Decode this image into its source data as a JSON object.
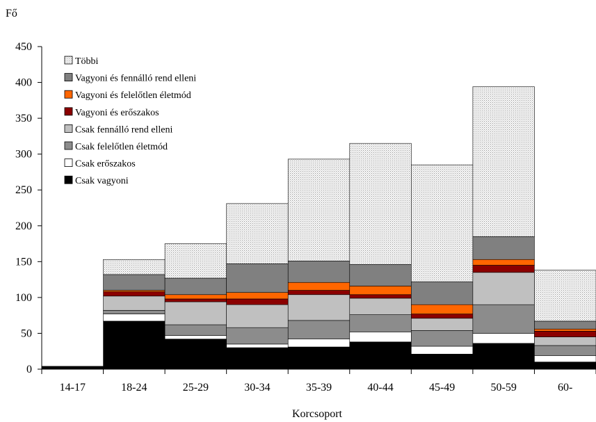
{
  "chart_data": {
    "type": "bar",
    "stacked": true,
    "ylabel": "Fő",
    "xlabel": "Korcsoport",
    "ylim": [
      0,
      450
    ],
    "yticks": [
      0,
      50,
      100,
      150,
      200,
      250,
      300,
      350,
      400,
      450
    ],
    "grid": false,
    "legend_position": "top-left",
    "categories": [
      "14-17",
      "18-24",
      "25-29",
      "30-34",
      "35-39",
      "40-44",
      "45-49",
      "50-59",
      "60-"
    ],
    "series": [
      {
        "name": "Csak vagyoni",
        "color": "#000000",
        "pattern": "solid",
        "values": [
          4,
          67,
          42,
          30,
          31,
          38,
          21,
          36,
          10
        ]
      },
      {
        "name": "Csak erőszakos",
        "color": "#ffffff",
        "pattern": "solid",
        "values": [
          0,
          10,
          5,
          5,
          11,
          14,
          11,
          14,
          9
        ]
      },
      {
        "name": "Csak felelőtlen életmód",
        "color": "#8c8c8c",
        "pattern": "solid",
        "values": [
          0,
          5,
          15,
          23,
          26,
          24,
          22,
          40,
          14
        ]
      },
      {
        "name": "Csak fennálló rend elleni",
        "color": "#c0c0c0",
        "pattern": "solid",
        "values": [
          0,
          20,
          32,
          32,
          36,
          23,
          17,
          45,
          12
        ]
      },
      {
        "name": "Vagyoni és erőszakos",
        "color": "#8b0000",
        "pattern": "solid",
        "values": [
          0,
          6,
          4,
          8,
          6,
          5,
          6,
          10,
          8
        ]
      },
      {
        "name": "Vagyoni és felelőtlen életmód",
        "color": "#ff6600",
        "pattern": "solid",
        "values": [
          0,
          2,
          6,
          9,
          11,
          12,
          13,
          8,
          3
        ]
      },
      {
        "name": "Vagyoni és fennálló rend elleni",
        "color": "#808080",
        "pattern": "solid",
        "values": [
          0,
          22,
          23,
          40,
          30,
          30,
          32,
          32,
          11
        ]
      },
      {
        "name": "Többi",
        "color": "#ededed",
        "pattern": "dotted",
        "values": [
          0,
          21,
          48,
          84,
          142,
          169,
          163,
          209,
          71
        ]
      }
    ]
  }
}
